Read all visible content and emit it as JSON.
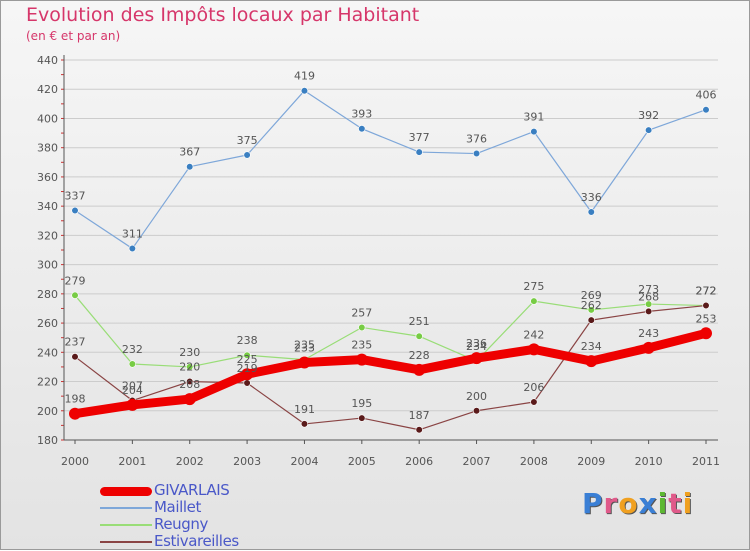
{
  "title": "Evolution des Impôts locaux par Habitant",
  "subtitle": "(en € et par an)",
  "logo": {
    "text": "Proxiti",
    "letters": [
      {
        "ch": "P",
        "color": "#3a7fd5"
      },
      {
        "ch": "r",
        "color": "#e05a8a"
      },
      {
        "ch": "o",
        "color": "#f0a020"
      },
      {
        "ch": "x",
        "color": "#3a7fd5"
      },
      {
        "ch": "i",
        "color": "#5cb832"
      },
      {
        "ch": "t",
        "color": "#e05a8a"
      },
      {
        "ch": "i",
        "color": "#f0a020"
      }
    ]
  },
  "colors": {
    "text": "#555555",
    "grid": "#cccccc",
    "axis": "#555555",
    "tick_red": "#cc3333",
    "legend_text": "#4a58c8"
  },
  "chart_data": {
    "type": "line",
    "title": "Evolution des Impôts locaux par Habitant",
    "subtitle": "(en € et par an)",
    "x": [
      "2000",
      "2001",
      "2002",
      "2003",
      "2004",
      "2005",
      "2006",
      "2007",
      "2008",
      "2009",
      "2010",
      "2011"
    ],
    "ylim": [
      180,
      440
    ],
    "yticks": [
      180,
      200,
      220,
      240,
      260,
      280,
      300,
      320,
      340,
      360,
      380,
      400,
      420,
      440
    ],
    "grid": true,
    "legend_position": "bottom-left",
    "series": [
      {
        "name": "GIVARLAIS",
        "color": "#ee0000",
        "marker": "#ee0000",
        "width": 9,
        "values": [
          198,
          204,
          208,
          225,
          233,
          235,
          228,
          236,
          242,
          234,
          243,
          253
        ],
        "labels": [
          "198",
          "204",
          "208",
          "225",
          "233",
          "235",
          "228",
          "236",
          "242",
          "234",
          "243",
          "253"
        ]
      },
      {
        "name": "Maillet",
        "color": "#7ea7d9",
        "marker": "#3a7fc1",
        "width": 1.2,
        "values": [
          337,
          311,
          367,
          375,
          419,
          393,
          377,
          376,
          391,
          336,
          392,
          406
        ],
        "labels": [
          "337",
          "311",
          "367",
          "375",
          "419",
          "393",
          "377",
          "376",
          "391",
          "336",
          "392",
          "406"
        ]
      },
      {
        "name": "Reugny",
        "color": "#99dd77",
        "marker": "#77cc44",
        "width": 1.2,
        "values": [
          279,
          232,
          230,
          238,
          235,
          257,
          251,
          234,
          275,
          269,
          273,
          272
        ],
        "labels": [
          "279",
          "232",
          "230",
          "238",
          "235",
          "257",
          "251",
          "234",
          "275",
          "269",
          "273",
          "272"
        ]
      },
      {
        "name": "Estivareilles",
        "color": "#8a4444",
        "marker": "#5a1a1a",
        "width": 1.2,
        "values": [
          237,
          207,
          220,
          219,
          191,
          195,
          187,
          200,
          206,
          262,
          268,
          272
        ],
        "labels": [
          "237",
          "207",
          "220",
          "219",
          "191",
          "195",
          "187",
          "200",
          "206",
          "262",
          "268",
          "272"
        ]
      }
    ]
  }
}
